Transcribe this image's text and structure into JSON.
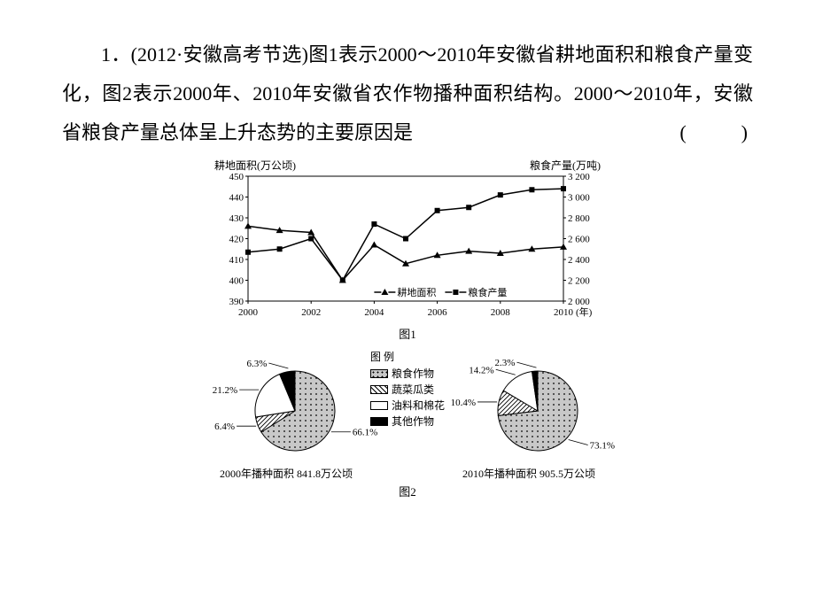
{
  "question": {
    "number": "1．",
    "source": "(2012·安徽高考节选)",
    "body1": "图1表示2000～2010年安徽省耕地面积和粮食产量变化，图2表示2000年、2010年安徽省农作物播种面积结构。2000～2010年，安徽省粮食产量总体呈上升态势的主要原因是",
    "blank": "(　　)"
  },
  "chart1": {
    "left_axis_label": "耕地面积(万公顷)",
    "right_axis_label": "粮食产量(万吨)",
    "years": [
      2000,
      2002,
      2004,
      2006,
      2008,
      2010
    ],
    "left_ticks": [
      390,
      400,
      410,
      420,
      430,
      440,
      450
    ],
    "right_ticks": [
      2000,
      2200,
      2400,
      2600,
      2800,
      3000,
      3200
    ],
    "series": [
      {
        "name": "耕地面积",
        "marker": "triangle",
        "values": [
          426,
          424,
          423,
          400,
          417,
          408,
          412,
          414,
          413,
          415,
          416
        ]
      },
      {
        "name": "粮食产量",
        "marker": "square",
        "values": [
          2470,
          2500,
          2600,
          2200,
          2740,
          2600,
          2870,
          2900,
          3020,
          3070,
          3080
        ]
      }
    ],
    "legend_labels": {
      "gdmj": "耕地面积",
      "lscl": "粮食产量"
    },
    "caption": "图1",
    "colors": {
      "line": "#000000",
      "bg": "#ffffff",
      "axis": "#000000"
    }
  },
  "chart2": {
    "caption": "图2",
    "legend_title": "图 例",
    "legend": [
      {
        "label": "粮食作物",
        "fill": "pattern-dots"
      },
      {
        "label": "蔬菜瓜类",
        "fill": "pattern-hatch"
      },
      {
        "label": "油料和棉花",
        "fill": "solid-white"
      },
      {
        "label": "其他作物",
        "fill": "solid-black"
      }
    ],
    "pies": [
      {
        "sublabel": "2000年播种面积 841.8万公顷",
        "slices": [
          {
            "label": "66.1%",
            "value": 66.1,
            "fill": "pattern-dots"
          },
          {
            "label": "6.4%",
            "value": 6.4,
            "fill": "pattern-hatch"
          },
          {
            "label": "21.2%",
            "value": 21.2,
            "fill": "solid-white"
          },
          {
            "label": "6.3%",
            "value": 6.3,
            "fill": "solid-black"
          }
        ]
      },
      {
        "sublabel": "2010年播种面积 905.5万公顷",
        "slices": [
          {
            "label": "73.1%",
            "value": 73.1,
            "fill": "pattern-dots"
          },
          {
            "label": "10.4%",
            "value": 10.4,
            "fill": "pattern-hatch"
          },
          {
            "label": "14.2%",
            "value": 14.2,
            "fill": "solid-white"
          },
          {
            "label": "2.3%",
            "value": 2.3,
            "fill": "solid-black"
          }
        ]
      }
    ],
    "colors": {
      "stroke": "#000000",
      "white": "#ffffff",
      "black": "#000000",
      "dots_bg": "#c8c8c8"
    }
  }
}
